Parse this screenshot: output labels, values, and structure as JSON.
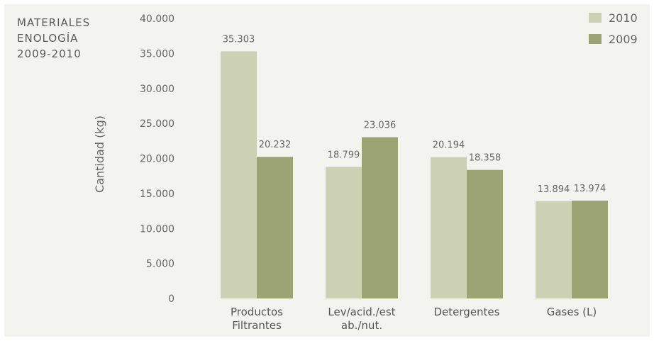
{
  "chart_data": {
    "type": "bar",
    "title_lines": [
      "MATERIALES",
      "ENOLOGÍA",
      "2009-2010"
    ],
    "ylabel": "Cantidad (kg)",
    "xlabel": "",
    "ylim": [
      0,
      40000
    ],
    "yticks": [
      0,
      5000,
      10000,
      15000,
      20000,
      25000,
      30000,
      35000,
      40000
    ],
    "ytick_labels": [
      "0",
      "5.000",
      "10.000",
      "15.000",
      "20.000",
      "25.000",
      "30.000",
      "35.000",
      "40.000"
    ],
    "categories": [
      [
        "Productos",
        "Filtrantes"
      ],
      [
        "Lev/acid./est",
        "ab./nut."
      ],
      [
        "Detergentes"
      ],
      [
        "Gases (L)"
      ]
    ],
    "series": [
      {
        "name": "2010",
        "color": "#cdd1b4",
        "values": [
          35303,
          18799,
          20194,
          13894
        ],
        "labels": [
          "35.303",
          "18.799",
          "20.194",
          "13.894"
        ]
      },
      {
        "name": "2009",
        "color": "#9ca474",
        "values": [
          20232,
          23036,
          18358,
          13974
        ],
        "labels": [
          "20.232",
          "23.036",
          "18.358",
          "13.974"
        ]
      }
    ],
    "legend_position": "top-right",
    "grid": false
  }
}
